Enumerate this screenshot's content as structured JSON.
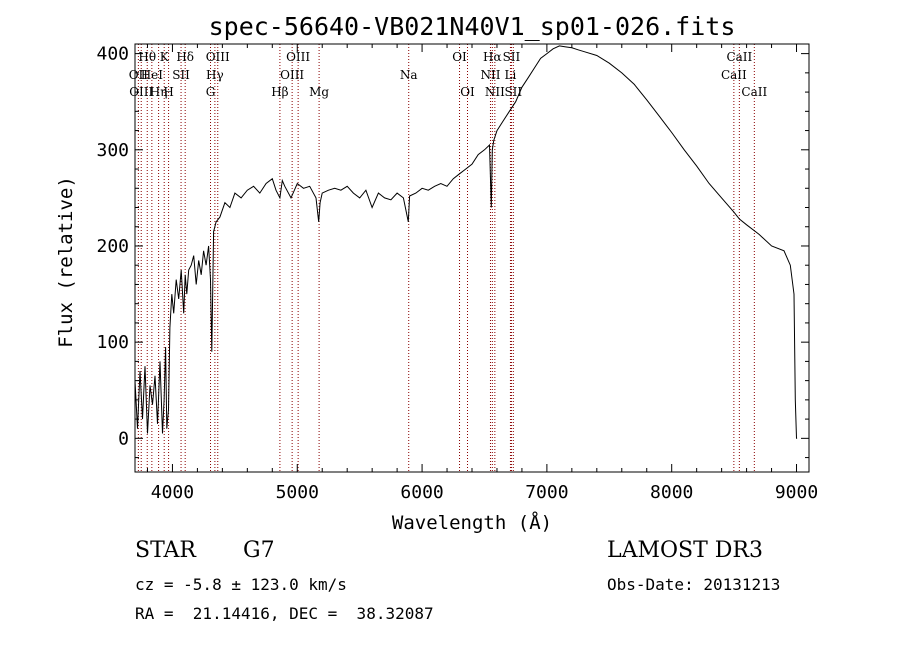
{
  "chart_data": {
    "type": "line",
    "title": "spec-56640-VB021N40V1_sp01-026.fits",
    "xlabel": "Wavelength (Å)",
    "ylabel": "Flux (relative)",
    "xlim": [
      3700,
      9100
    ],
    "ylim": [
      -35,
      410
    ],
    "xticks": [
      4000,
      5000,
      6000,
      7000,
      8000,
      9000
    ],
    "yticks": [
      0,
      100,
      200,
      300,
      400
    ],
    "series": [
      {
        "name": "flux",
        "x": [
          3700,
          3720,
          3740,
          3760,
          3780,
          3800,
          3820,
          3840,
          3860,
          3880,
          3900,
          3920,
          3933,
          3945,
          3955,
          3968,
          3980,
          3995,
          4010,
          4030,
          4050,
          4070,
          4090,
          4102,
          4115,
          4130,
          4150,
          4170,
          4190,
          4210,
          4230,
          4250,
          4270,
          4290,
          4305,
          4315,
          4330,
          4350,
          4380,
          4420,
          4460,
          4500,
          4550,
          4600,
          4650,
          4700,
          4750,
          4800,
          4830,
          4861,
          4880,
          4900,
          4950,
          5000,
          5050,
          5100,
          5150,
          5172,
          5183,
          5200,
          5250,
          5300,
          5350,
          5400,
          5450,
          5500,
          5550,
          5600,
          5650,
          5700,
          5750,
          5800,
          5850,
          5890,
          5900,
          5950,
          6000,
          6050,
          6100,
          6150,
          6200,
          6250,
          6300,
          6350,
          6400,
          6450,
          6500,
          6540,
          6555,
          6563,
          6575,
          6600,
          6650,
          6700,
          6750,
          6800,
          6850,
          6900,
          6950,
          7000,
          7050,
          7100,
          7150,
          7200,
          7250,
          7300,
          7400,
          7500,
          7600,
          7700,
          7800,
          7900,
          8000,
          8100,
          8200,
          8300,
          8400,
          8500,
          8542,
          8600,
          8700,
          8800,
          8900,
          8950,
          8980,
          8990,
          9000,
          9005
        ],
        "y": [
          60,
          10,
          70,
          20,
          75,
          5,
          55,
          35,
          65,
          15,
          80,
          5,
          40,
          95,
          10,
          30,
          115,
          150,
          130,
          165,
          145,
          175,
          130,
          170,
          150,
          175,
          180,
          190,
          160,
          185,
          170,
          195,
          180,
          200,
          165,
          90,
          215,
          225,
          230,
          245,
          240,
          255,
          250,
          258,
          262,
          255,
          265,
          270,
          258,
          250,
          268,
          262,
          250,
          265,
          260,
          262,
          250,
          225,
          245,
          255,
          258,
          260,
          258,
          262,
          255,
          250,
          258,
          240,
          255,
          250,
          248,
          255,
          250,
          225,
          252,
          255,
          260,
          258,
          262,
          265,
          262,
          270,
          275,
          280,
          285,
          295,
          300,
          305,
          240,
          300,
          310,
          320,
          330,
          340,
          350,
          365,
          375,
          385,
          395,
          400,
          405,
          408,
          407,
          406,
          404,
          402,
          398,
          390,
          380,
          368,
          352,
          335,
          318,
          300,
          283,
          265,
          250,
          235,
          228,
          222,
          212,
          200,
          195,
          180,
          150,
          40,
          0,
          0
        ]
      }
    ],
    "spectral_lines": [
      {
        "name": "Hθ",
        "wl": 3798,
        "row": 0
      },
      {
        "name": "OII",
        "wl": 3727,
        "row": 1
      },
      {
        "name": "OIII",
        "wl": 3750,
        "row": 2
      },
      {
        "name": "HeI",
        "wl": 3835,
        "row": 1
      },
      {
        "name": "Hη",
        "wl": 3889,
        "row": 2
      },
      {
        "name": "K",
        "wl": 3934,
        "row": 0
      },
      {
        "name": "H",
        "wl": 3969,
        "row": 2
      },
      {
        "name": "SII",
        "wl": 4069,
        "row": 1
      },
      {
        "name": "Hδ",
        "wl": 4102,
        "row": 0
      },
      {
        "name": "OIII",
        "wl": 4363,
        "row": 0
      },
      {
        "name": "Hγ",
        "wl": 4340,
        "row": 1
      },
      {
        "name": "G",
        "wl": 4305,
        "row": 2
      },
      {
        "name": "Hβ",
        "wl": 4861,
        "row": 2
      },
      {
        "name": "OIII",
        "wl": 5007,
        "row": 0
      },
      {
        "name": "OIII",
        "wl": 4959,
        "row": 1
      },
      {
        "name": "Mg",
        "wl": 5175,
        "row": 2
      },
      {
        "name": "Na",
        "wl": 5893,
        "row": 1
      },
      {
        "name": "OI",
        "wl": 6300,
        "row": 0
      },
      {
        "name": "OI",
        "wl": 6364,
        "row": 2
      },
      {
        "name": "Hα",
        "wl": 6563,
        "row": 0
      },
      {
        "name": "SII",
        "wl": 6716,
        "row": 0
      },
      {
        "name": "NII",
        "wl": 6548,
        "row": 1
      },
      {
        "name": "Li",
        "wl": 6708,
        "row": 1
      },
      {
        "name": "NII",
        "wl": 6583,
        "row": 2
      },
      {
        "name": "SII",
        "wl": 6731,
        "row": 2
      },
      {
        "name": "CaII",
        "wl": 8542,
        "row": 0
      },
      {
        "name": "CaII",
        "wl": 8498,
        "row": 1
      },
      {
        "name": "CaII",
        "wl": 8662,
        "row": 2
      }
    ],
    "grid": false
  },
  "info": {
    "class_label": "STAR",
    "subclass": "G7",
    "survey": "LAMOST DR3",
    "redshift": "cz = -5.8 ± 123.0 km/s",
    "obs_date": "Obs-Date: 20131213",
    "coords": "RA =  21.14416, DEC =  38.32087"
  },
  "colors": {
    "line": "#000000",
    "marker": "#8b0000"
  }
}
